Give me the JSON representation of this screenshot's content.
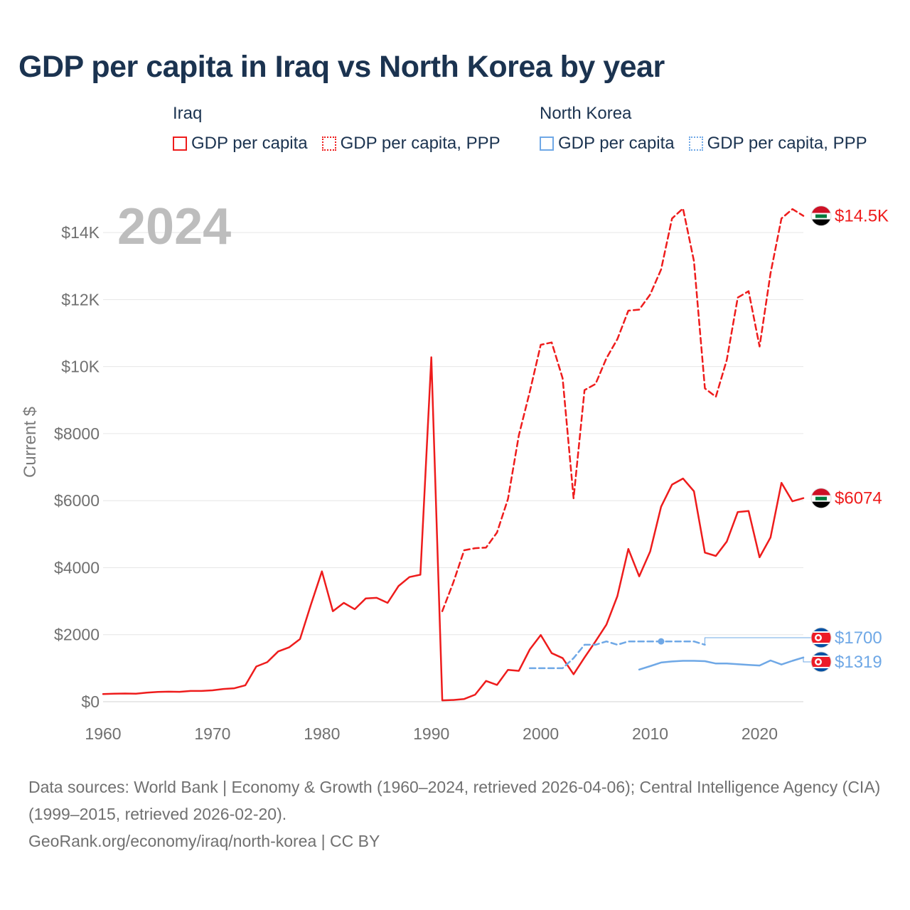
{
  "title": "GDP per capita in Iraq vs North Korea by year",
  "legend": {
    "groups": [
      {
        "country": "Iraq",
        "items": [
          {
            "label": "GDP per capita",
            "color": "#ee1c1c",
            "style": "solid"
          },
          {
            "label": "GDP per capita, PPP",
            "color": "#ee1c1c",
            "style": "dotted"
          }
        ]
      },
      {
        "country": "North Korea",
        "items": [
          {
            "label": "GDP per capita",
            "color": "#6fa8e6",
            "style": "solid"
          },
          {
            "label": "GDP per capita, PPP",
            "color": "#6fa8e6",
            "style": "dotted"
          }
        ]
      }
    ]
  },
  "chart_data": {
    "type": "line",
    "title": "GDP per capita in Iraq vs North Korea by year",
    "year_label": "2024",
    "xlabel": "",
    "ylabel": "Current $",
    "xlim": [
      1960,
      2024
    ],
    "ylim": [
      0,
      15000
    ],
    "x_ticks": [
      1960,
      1970,
      1980,
      1990,
      2000,
      2010,
      2020
    ],
    "y_ticks": [
      0,
      2000,
      4000,
      6000,
      8000,
      10000,
      12000,
      14000
    ],
    "y_tick_labels": [
      "$0",
      "$2000",
      "$4000",
      "$6000",
      "$8000",
      "$10K",
      "$12K",
      "$14K"
    ],
    "series": [
      {
        "name": "Iraq GDP per capita",
        "country": "Iraq",
        "color": "#ee1c1c",
        "dash": "solid",
        "end_label": "$6074",
        "flag": "iraq",
        "points": [
          [
            1960,
            230
          ],
          [
            1961,
            240
          ],
          [
            1962,
            245
          ],
          [
            1963,
            240
          ],
          [
            1964,
            270
          ],
          [
            1965,
            290
          ],
          [
            1966,
            300
          ],
          [
            1967,
            295
          ],
          [
            1968,
            320
          ],
          [
            1969,
            320
          ],
          [
            1970,
            340
          ],
          [
            1971,
            380
          ],
          [
            1972,
            400
          ],
          [
            1973,
            490
          ],
          [
            1974,
            1050
          ],
          [
            1975,
            1180
          ],
          [
            1976,
            1500
          ],
          [
            1977,
            1620
          ],
          [
            1978,
            1870
          ],
          [
            1979,
            2900
          ],
          [
            1980,
            3890
          ],
          [
            1981,
            2700
          ],
          [
            1982,
            2950
          ],
          [
            1983,
            2760
          ],
          [
            1984,
            3080
          ],
          [
            1985,
            3100
          ],
          [
            1986,
            2950
          ],
          [
            1987,
            3450
          ],
          [
            1988,
            3720
          ],
          [
            1989,
            3790
          ],
          [
            1990,
            10280
          ],
          [
            1991,
            40
          ],
          [
            1992,
            50
          ],
          [
            1993,
            80
          ],
          [
            1994,
            210
          ],
          [
            1995,
            620
          ],
          [
            1996,
            500
          ],
          [
            1997,
            950
          ],
          [
            1998,
            920
          ],
          [
            1999,
            1560
          ],
          [
            2000,
            1990
          ],
          [
            2001,
            1450
          ],
          [
            2002,
            1300
          ],
          [
            2003,
            820
          ],
          [
            2004,
            1320
          ],
          [
            2005,
            1800
          ],
          [
            2006,
            2300
          ],
          [
            2007,
            3150
          ],
          [
            2008,
            4560
          ],
          [
            2009,
            3740
          ],
          [
            2010,
            4480
          ],
          [
            2011,
            5820
          ],
          [
            2012,
            6480
          ],
          [
            2013,
            6660
          ],
          [
            2014,
            6280
          ],
          [
            2015,
            4450
          ],
          [
            2016,
            4350
          ],
          [
            2017,
            4780
          ],
          [
            2018,
            5660
          ],
          [
            2019,
            5690
          ],
          [
            2020,
            4310
          ],
          [
            2021,
            4900
          ],
          [
            2022,
            6530
          ],
          [
            2023,
            5980
          ],
          [
            2024,
            6074
          ]
        ]
      },
      {
        "name": "Iraq GDP per capita, PPP",
        "country": "Iraq",
        "color": "#ee1c1c",
        "dash": "dashed",
        "end_label": "$14.5K",
        "flag": "iraq",
        "points": [
          [
            1991,
            2700
          ],
          [
            1992,
            3550
          ],
          [
            1993,
            4520
          ],
          [
            1994,
            4580
          ],
          [
            1995,
            4600
          ],
          [
            1996,
            5050
          ],
          [
            1997,
            6050
          ],
          [
            1998,
            7950
          ],
          [
            1999,
            9250
          ],
          [
            2000,
            10650
          ],
          [
            2001,
            10720
          ],
          [
            2002,
            9650
          ],
          [
            2003,
            6070
          ],
          [
            2004,
            9300
          ],
          [
            2005,
            9480
          ],
          [
            2006,
            10250
          ],
          [
            2007,
            10820
          ],
          [
            2008,
            11670
          ],
          [
            2009,
            11700
          ],
          [
            2010,
            12150
          ],
          [
            2011,
            12900
          ],
          [
            2012,
            14420
          ],
          [
            2013,
            14720
          ],
          [
            2014,
            13150
          ],
          [
            2015,
            9350
          ],
          [
            2016,
            9100
          ],
          [
            2017,
            10200
          ],
          [
            2018,
            12060
          ],
          [
            2019,
            12250
          ],
          [
            2020,
            10600
          ],
          [
            2021,
            12780
          ],
          [
            2022,
            14420
          ],
          [
            2023,
            14700
          ],
          [
            2024,
            14500
          ]
        ]
      },
      {
        "name": "North Korea GDP per capita",
        "country": "North Korea",
        "color": "#6fa8e6",
        "dash": "solid",
        "end_label": "$1319",
        "flag": "north-korea",
        "points": [
          [
            2009,
            960
          ],
          [
            2010,
            1060
          ],
          [
            2011,
            1170
          ],
          [
            2012,
            1200
          ],
          [
            2013,
            1220
          ],
          [
            2014,
            1220
          ],
          [
            2015,
            1210
          ],
          [
            2016,
            1140
          ],
          [
            2017,
            1140
          ],
          [
            2018,
            1120
          ],
          [
            2019,
            1100
          ],
          [
            2020,
            1080
          ],
          [
            2021,
            1230
          ],
          [
            2022,
            1110
          ],
          [
            2023,
            1220
          ],
          [
            2024,
            1319
          ]
        ]
      },
      {
        "name": "North Korea GDP per capita, PPP",
        "country": "North Korea",
        "color": "#6fa8e6",
        "dash": "dashed",
        "end_label": "$1700",
        "flag": "north-korea",
        "points": [
          [
            1999,
            1000
          ],
          [
            2000,
            1000
          ],
          [
            2001,
            1000
          ],
          [
            2002,
            1000
          ],
          [
            2003,
            1300
          ],
          [
            2004,
            1700
          ],
          [
            2005,
            1700
          ],
          [
            2006,
            1800
          ],
          [
            2007,
            1700
          ],
          [
            2008,
            1800
          ],
          [
            2009,
            1800
          ],
          [
            2010,
            1800
          ],
          [
            2011,
            1800
          ],
          [
            2012,
            1800
          ],
          [
            2013,
            1800
          ],
          [
            2014,
            1800
          ],
          [
            2015,
            1700
          ]
        ]
      }
    ]
  },
  "footer": {
    "sources": "Data sources: World Bank | Economy & Growth (1960–2024, retrieved 2026-04-06); Central Intelligence Agency (CIA) (1999–2015, retrieved 2026-02-20).",
    "site": "GeoRank.org/economy/iraq/north-korea | CC BY"
  }
}
